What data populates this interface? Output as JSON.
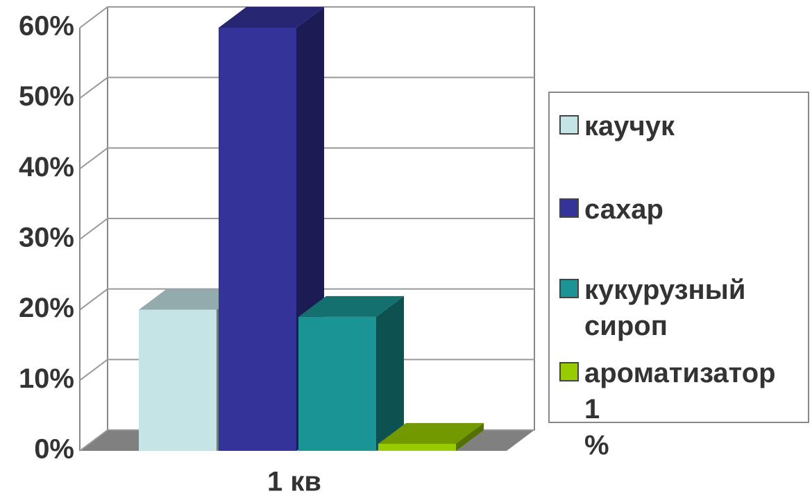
{
  "chart_data": {
    "type": "bar3d",
    "categories": [
      "1 кв"
    ],
    "series": [
      {
        "name": "каучук",
        "color": "#c4e4e6",
        "values": [
          20
        ]
      },
      {
        "name": "сахар",
        "color": "#333399",
        "values": [
          60
        ]
      },
      {
        "name": "кукурузный сироп",
        "color": "#1a9494",
        "values": [
          19
        ]
      },
      {
        "name": "ароматизатор 1 %",
        "color": "#99cc00",
        "values": [
          1
        ]
      }
    ],
    "ylim": [
      0,
      60
    ],
    "yticks": [
      {
        "value": 0,
        "label": "0%"
      },
      {
        "value": 10,
        "label": "10%"
      },
      {
        "value": 20,
        "label": "20%"
      },
      {
        "value": 30,
        "label": "30%"
      },
      {
        "value": 40,
        "label": "40%"
      },
      {
        "value": 50,
        "label": "50%"
      },
      {
        "value": 60,
        "label": "60%"
      }
    ],
    "grid": true,
    "legend": "right"
  }
}
